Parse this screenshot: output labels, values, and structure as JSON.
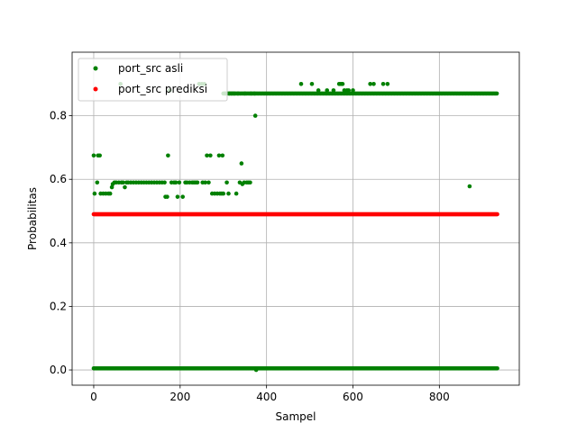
{
  "chart_data": {
    "type": "scatter",
    "title": "",
    "xlabel": "Sampel",
    "ylabel": "Probabilitas",
    "xlim": [
      -50,
      985
    ],
    "ylim": [
      -0.048,
      1.0
    ],
    "xticks": [
      0,
      200,
      400,
      600,
      800
    ],
    "yticks": [
      0.0,
      0.2,
      0.4,
      0.6,
      0.8
    ],
    "xtick_labels": [
      "0",
      "200",
      "400",
      "600",
      "800"
    ],
    "ytick_labels": [
      "0.0",
      "0.2",
      "0.4",
      "0.6",
      "0.8"
    ],
    "grid": true,
    "legend_position": "top-left",
    "series": [
      {
        "name": "port_src asli",
        "color": "#008000",
        "segments": [
          {
            "x_start": 0,
            "x_end": 935,
            "step": 2,
            "y": 0.005
          }
        ],
        "points": [
          [
            0,
            0.675
          ],
          [
            2,
            0.555
          ],
          [
            8,
            0.59
          ],
          [
            10,
            0.675
          ],
          [
            14,
            0.675
          ],
          [
            16,
            0.555
          ],
          [
            22,
            0.555
          ],
          [
            28,
            0.555
          ],
          [
            34,
            0.555
          ],
          [
            38,
            0.555
          ],
          [
            42,
            0.575
          ],
          [
            44,
            0.585
          ],
          [
            48,
            0.59
          ],
          [
            52,
            0.59
          ],
          [
            58,
            0.59
          ],
          [
            62,
            0.9
          ],
          [
            64,
            0.59
          ],
          [
            68,
            0.59
          ],
          [
            72,
            0.575
          ],
          [
            76,
            0.59
          ],
          [
            80,
            0.59
          ],
          [
            86,
            0.59
          ],
          [
            92,
            0.59
          ],
          [
            98,
            0.59
          ],
          [
            104,
            0.59
          ],
          [
            110,
            0.59
          ],
          [
            116,
            0.59
          ],
          [
            122,
            0.59
          ],
          [
            128,
            0.59
          ],
          [
            134,
            0.59
          ],
          [
            140,
            0.59
          ],
          [
            146,
            0.59
          ],
          [
            152,
            0.59
          ],
          [
            158,
            0.59
          ],
          [
            164,
            0.59
          ],
          [
            166,
            0.545
          ],
          [
            170,
            0.545
          ],
          [
            172,
            0.675
          ],
          [
            176,
            0.88
          ],
          [
            180,
            0.59
          ],
          [
            186,
            0.59
          ],
          [
            190,
            0.59
          ],
          [
            194,
            0.545
          ],
          [
            198,
            0.59
          ],
          [
            206,
            0.545
          ],
          [
            212,
            0.59
          ],
          [
            216,
            0.59
          ],
          [
            222,
            0.59
          ],
          [
            228,
            0.59
          ],
          [
            232,
            0.59
          ],
          [
            236,
            0.59
          ],
          [
            240,
            0.59
          ],
          [
            244,
            0.9
          ],
          [
            250,
            0.9
          ],
          [
            252,
            0.59
          ],
          [
            256,
            0.9
          ],
          [
            258,
            0.59
          ],
          [
            262,
            0.675
          ],
          [
            266,
            0.59
          ],
          [
            270,
            0.675
          ],
          [
            274,
            0.555
          ],
          [
            280,
            0.555
          ],
          [
            286,
            0.555
          ],
          [
            290,
            0.675
          ],
          [
            292,
            0.555
          ],
          [
            296,
            0.555
          ],
          [
            298,
            0.675
          ],
          [
            300,
            0.555
          ],
          [
            304,
            0.87
          ],
          [
            308,
            0.59
          ],
          [
            312,
            0.555
          ],
          [
            314,
            0.87
          ],
          [
            318,
            0.87
          ],
          [
            322,
            0.87
          ],
          [
            326,
            0.87
          ],
          [
            330,
            0.555
          ],
          [
            334,
            0.87
          ],
          [
            338,
            0.59
          ],
          [
            342,
            0.65
          ],
          [
            344,
            0.585
          ],
          [
            348,
            0.59
          ],
          [
            350,
            0.87
          ],
          [
            354,
            0.59
          ],
          [
            358,
            0.59
          ],
          [
            362,
            0.59
          ],
          [
            364,
            0.87
          ],
          [
            372,
            0.87
          ],
          [
            374,
            0.8
          ],
          [
            376,
            0.0
          ],
          [
            480,
            0.9
          ],
          [
            505,
            0.9
          ],
          [
            520,
            0.88
          ],
          [
            540,
            0.88
          ],
          [
            555,
            0.88
          ],
          [
            568,
            0.9
          ],
          [
            572,
            0.9
          ],
          [
            576,
            0.9
          ],
          [
            580,
            0.88
          ],
          [
            586,
            0.88
          ],
          [
            590,
            0.88
          ],
          [
            600,
            0.88
          ],
          [
            640,
            0.9
          ],
          [
            648,
            0.9
          ],
          [
            670,
            0.9
          ],
          [
            680,
            0.9
          ],
          [
            870,
            0.578
          ]
        ],
        "dense_segments": [
          {
            "x_start": 300,
            "x_end": 935,
            "step": 3,
            "y": 0.87
          }
        ]
      },
      {
        "name": "port_src prediksi",
        "color": "#ff0000",
        "segments": [
          {
            "x_start": 0,
            "x_end": 935,
            "step": 2,
            "y": 0.49
          }
        ],
        "points": []
      }
    ]
  }
}
